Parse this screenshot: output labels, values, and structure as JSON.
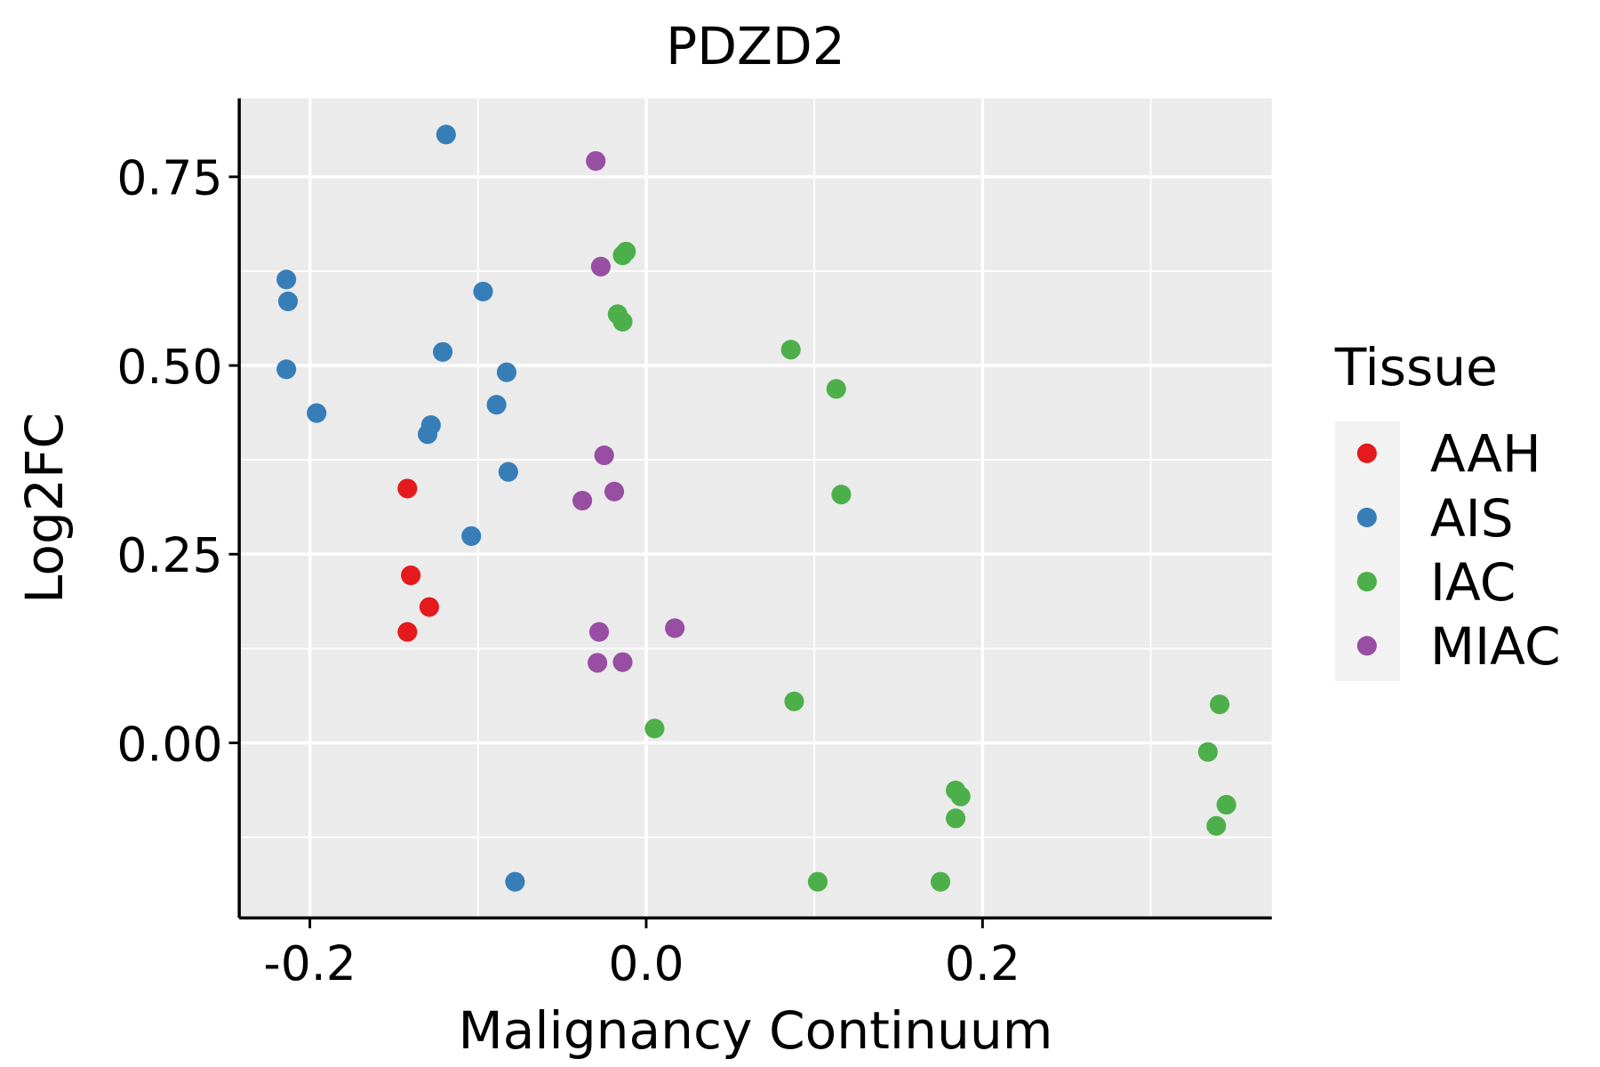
{
  "chart_data": {
    "type": "scatter",
    "title": "PDZD2",
    "xlabel": "Malignancy Continuum",
    "ylabel": "Log2FC",
    "xlim": [
      -0.242,
      0.372
    ],
    "ylim": [
      -0.232,
      0.854
    ],
    "xticks": [
      -0.2,
      0.0,
      0.2
    ],
    "xtick_labels": [
      "-0.2",
      "0.0",
      "0.2"
    ],
    "yticks": [
      0.0,
      0.25,
      0.5,
      0.75
    ],
    "ytick_labels": [
      "0.00",
      "0.25",
      "0.50",
      "0.75"
    ],
    "grid": true,
    "legend": {
      "title": "Tissue",
      "placement": "right"
    },
    "series": [
      {
        "name": "AAH",
        "color": "#E41A1C",
        "points": [
          [
            -0.142,
            0.337
          ],
          [
            -0.14,
            0.222
          ],
          [
            -0.129,
            0.18
          ],
          [
            -0.142,
            0.147
          ]
        ]
      },
      {
        "name": "AIS",
        "color": "#377EB8",
        "points": [
          [
            -0.119,
            0.806
          ],
          [
            -0.214,
            0.614
          ],
          [
            -0.213,
            0.585
          ],
          [
            -0.214,
            0.495
          ],
          [
            -0.196,
            0.437
          ],
          [
            -0.097,
            0.598
          ],
          [
            -0.121,
            0.518
          ],
          [
            -0.083,
            0.491
          ],
          [
            -0.089,
            0.448
          ],
          [
            -0.128,
            0.421
          ],
          [
            -0.13,
            0.409
          ],
          [
            -0.082,
            0.359
          ],
          [
            -0.104,
            0.274
          ],
          [
            -0.078,
            -0.184
          ]
        ]
      },
      {
        "name": "IAC",
        "color": "#4DAF4A",
        "points": [
          [
            -0.012,
            0.651
          ],
          [
            -0.014,
            0.646
          ],
          [
            -0.017,
            0.568
          ],
          [
            -0.014,
            0.558
          ],
          [
            0.086,
            0.521
          ],
          [
            0.113,
            0.469
          ],
          [
            0.116,
            0.329
          ],
          [
            0.088,
            0.055
          ],
          [
            0.005,
            0.019
          ],
          [
            0.341,
            0.051
          ],
          [
            0.334,
            -0.012
          ],
          [
            0.184,
            -0.063
          ],
          [
            0.187,
            -0.071
          ],
          [
            0.345,
            -0.082
          ],
          [
            0.184,
            -0.1
          ],
          [
            0.339,
            -0.11
          ],
          [
            0.102,
            -0.184
          ],
          [
            0.175,
            -0.184
          ]
        ]
      },
      {
        "name": "MIAC",
        "color": "#984EA3",
        "points": [
          [
            -0.03,
            0.771
          ],
          [
            -0.027,
            0.631
          ],
          [
            -0.025,
            0.381
          ],
          [
            -0.019,
            0.333
          ],
          [
            -0.038,
            0.321
          ],
          [
            0.017,
            0.152
          ],
          [
            -0.028,
            0.147
          ],
          [
            -0.029,
            0.106
          ],
          [
            -0.014,
            0.107
          ]
        ]
      }
    ]
  }
}
